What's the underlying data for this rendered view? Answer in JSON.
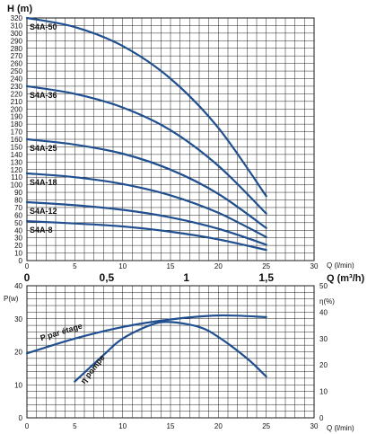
{
  "chart_data": [
    {
      "type": "line",
      "title": "",
      "ylabel": "H (m)",
      "xlabel": "Q (l/min)",
      "xlabel_secondary": "Q (m³/h)",
      "xlim": [
        0,
        30
      ],
      "ylim": [
        0,
        320
      ],
      "x_ticks": [
        "0",
        "5",
        "10",
        "15",
        "20",
        "25",
        "30"
      ],
      "y_ticks": [
        "0",
        "10",
        "20",
        "30",
        "40",
        "50",
        "60",
        "70",
        "80",
        "90",
        "100",
        "110",
        "120",
        "130",
        "140",
        "150",
        "160",
        "170",
        "180",
        "190",
        "200",
        "210",
        "220",
        "230",
        "240",
        "250",
        "260",
        "270",
        "280",
        "290",
        "300",
        "310",
        "320"
      ],
      "secondary_x_ticks": [
        "0",
        "0,5",
        "1",
        "1,5"
      ],
      "grid": true,
      "series": [
        {
          "name": "S4A-50",
          "x": [
            0,
            5,
            10,
            15,
            20,
            25
          ],
          "y": [
            320,
            308,
            283,
            240,
            175,
            85
          ]
        },
        {
          "name": "S4A-36",
          "x": [
            0,
            5,
            10,
            15,
            20,
            25
          ],
          "y": [
            230,
            220,
            202,
            172,
            125,
            62
          ]
        },
        {
          "name": "S4A-25",
          "x": [
            0,
            5,
            10,
            15,
            20,
            25
          ],
          "y": [
            160,
            153,
            141,
            120,
            88,
            43
          ]
        },
        {
          "name": "S4A-18",
          "x": [
            0,
            5,
            10,
            15,
            20,
            25
          ],
          "y": [
            115,
            110,
            101,
            86,
            63,
            31
          ]
        },
        {
          "name": "S4A-12",
          "x": [
            0,
            5,
            10,
            15,
            20,
            25
          ],
          "y": [
            77,
            73,
            67,
            57,
            42,
            21
          ]
        },
        {
          "name": "S4A-8",
          "x": [
            0,
            5,
            10,
            15,
            20,
            25
          ],
          "y": [
            52,
            49,
            45,
            38,
            28,
            14
          ]
        }
      ]
    },
    {
      "type": "line",
      "title": "",
      "ylabel": "P(w)",
      "ylabel_right": "η(%)",
      "xlabel": "Q (l/min)",
      "xlim": [
        0,
        30
      ],
      "ylim": [
        0,
        40
      ],
      "ylim_right": [
        0,
        50
      ],
      "x_ticks": [
        "0",
        "5",
        "10",
        "15",
        "20",
        "25",
        "30"
      ],
      "y_ticks": [
        "0",
        "10",
        "20",
        "30",
        "40"
      ],
      "y_ticks_right": [
        "0",
        "10",
        "20",
        "30",
        "40",
        "50"
      ],
      "grid": true,
      "series": [
        {
          "name": "P par étage",
          "axis": "left",
          "x": [
            0,
            5,
            10,
            15,
            20,
            25
          ],
          "y": [
            19.5,
            24,
            27.5,
            29.8,
            31,
            30.5
          ]
        },
        {
          "name": "η pompe",
          "axis": "left",
          "x": [
            5,
            8,
            10,
            13,
            15,
            18,
            20,
            23,
            25
          ],
          "y": [
            11,
            19,
            24,
            28.2,
            29,
            27.5,
            24.5,
            18,
            12.5
          ]
        }
      ]
    }
  ]
}
